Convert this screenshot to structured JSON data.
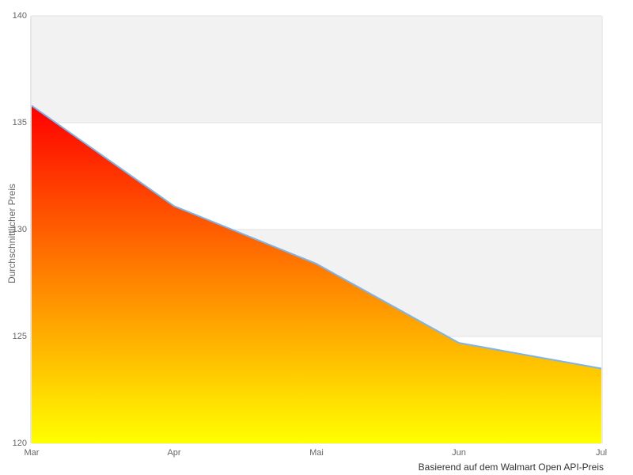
{
  "chart_data": {
    "type": "area",
    "categories": [
      "Mar",
      "Apr",
      "Mai",
      "Jun",
      "Jul"
    ],
    "values": [
      135.8,
      131.1,
      128.4,
      124.7,
      123.5
    ],
    "title": "",
    "xlabel": "",
    "ylabel": "Durchschnittlicher Preis",
    "caption": "Basierend auf dem Walmart Open API-Preis",
    "ylim": [
      120,
      140
    ],
    "y_ticks": [
      120,
      125,
      130,
      135,
      140
    ],
    "y_tick_labels": [
      "120",
      "125",
      "130",
      "135",
      "140"
    ],
    "grid": true,
    "alternating_bands": true,
    "legend": "none",
    "colors": {
      "line": "#7cb5ec",
      "area_gradient_top": "#ff0000",
      "area_gradient_bottom": "#ffff00",
      "band_fill": "#f2f2f2",
      "gridline": "#e2e2e2",
      "axis_line": "#cccccc",
      "plot_border": "#d8d8d8",
      "tick_label_color": "#666666",
      "axis_title_color": "#666666",
      "caption_color": "#333333"
    }
  }
}
